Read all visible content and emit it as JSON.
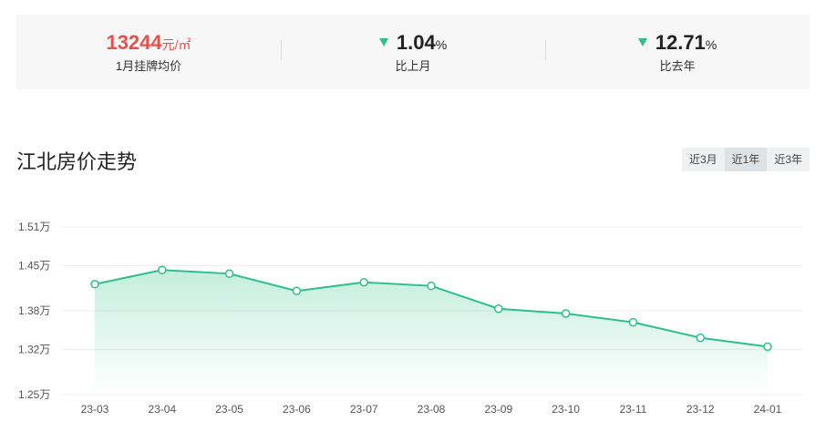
{
  "stats": [
    {
      "value": "13244",
      "unit": "元/㎡",
      "label": "1月挂牌均价",
      "arrow": false,
      "type": "price"
    },
    {
      "value": "1.04",
      "unit": "%",
      "label": "比上月",
      "arrow": true,
      "type": "change"
    },
    {
      "value": "12.71",
      "unit": "%",
      "label": "比去年",
      "arrow": true,
      "type": "change"
    }
  ],
  "section_title": "江北房价走势",
  "tabs": [
    {
      "label": "近3月",
      "active": false
    },
    {
      "label": "近1年",
      "active": true
    },
    {
      "label": "近3年",
      "active": false
    }
  ],
  "colors": {
    "line": "#2ec08a",
    "price": "#e8514a",
    "arrow_down": "#2ec08a"
  },
  "chart_data": {
    "type": "area",
    "x": [
      "23-03",
      "23-04",
      "23-05",
      "23-06",
      "23-07",
      "23-08",
      "23-09",
      "23-10",
      "23-11",
      "23-12",
      "24-01"
    ],
    "series": [
      {
        "values": [
          14213,
          14432,
          14375,
          14108,
          14242,
          14186,
          13832,
          13758,
          13622,
          13382,
          13244
        ]
      }
    ],
    "yticks": [
      12500,
      13200,
      13800,
      14500,
      15100
    ],
    "ytick_labels": [
      "1.25万",
      "1.32万",
      "1.38万",
      "1.45万",
      "1.51万"
    ],
    "ylim": [
      12500,
      15100
    ],
    "grid": true,
    "legend": "none"
  }
}
